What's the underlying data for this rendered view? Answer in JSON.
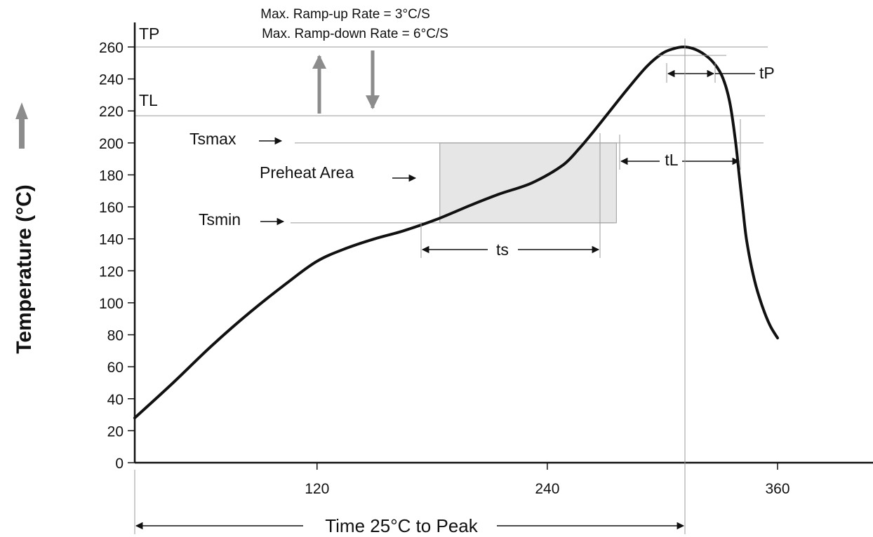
{
  "chart_data": {
    "type": "line",
    "title": "",
    "xlabel": "Time 25°C to Peak",
    "ylabel": "Temperature (°C)",
    "xlim": [
      25,
      410
    ],
    "ylim": [
      0,
      270
    ],
    "yticks": [
      0,
      20,
      40,
      60,
      80,
      100,
      120,
      140,
      160,
      180,
      200,
      220,
      240,
      260
    ],
    "xticks": [
      120,
      240,
      360
    ],
    "grid": false,
    "series": [
      {
        "x": [
          25,
          45,
          65,
          85,
          105,
          120,
          135,
          150,
          165,
          182,
          200,
          215,
          232,
          248,
          257,
          262,
          272,
          282,
          292,
          300,
          306,
          311,
          316,
          321,
          326,
          331,
          335,
          338,
          340,
          342,
          344,
          348,
          352,
          356,
          360
        ],
        "y": [
          28,
          50,
          73,
          94,
          113,
          126,
          134,
          140,
          145,
          152,
          161,
          168,
          175,
          186,
          197,
          204,
          219,
          234,
          248,
          256,
          259,
          260,
          259,
          256,
          251,
          242,
          226,
          202,
          180,
          158,
          138,
          114,
          98,
          86,
          78
        ]
      }
    ],
    "reference_lines": [
      {
        "label": "Tsmax",
        "y": 200
      },
      {
        "label": "Tsmin",
        "y": 150
      },
      {
        "label": "TL",
        "y": 217
      },
      {
        "label": "TP",
        "y": 260
      }
    ],
    "preheat_area": {
      "label": "Preheat Area",
      "x": [
        184,
        276
      ],
      "y": [
        150,
        200
      ]
    },
    "annotations": {
      "ramp_up": "Max. Ramp-up Rate = 3°C/S",
      "ramp_down": "Max. Ramp-down Rate = 6°C/S",
      "tp_axis": "TP",
      "tl_axis": "TL",
      "tsmax": "Tsmax",
      "tsmin": "Tsmin",
      "preheat": "Preheat Area",
      "ts": "ts",
      "tl": "tL",
      "tp": "tP"
    }
  }
}
